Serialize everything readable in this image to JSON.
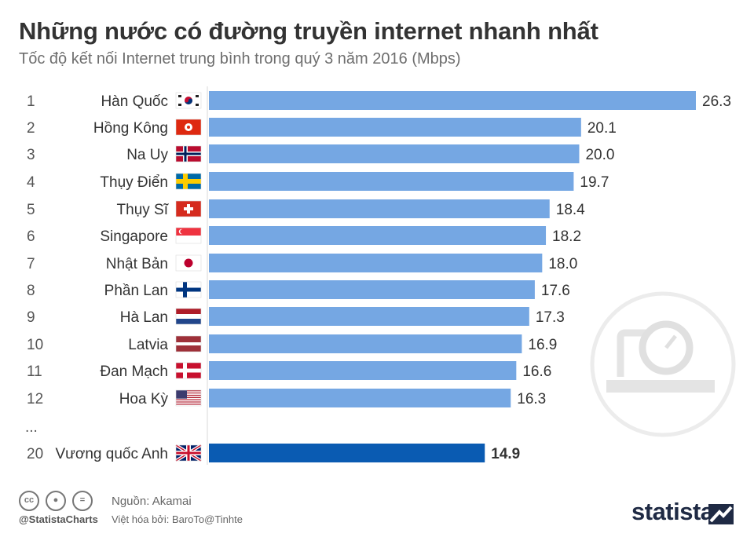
{
  "header": {
    "title": "Những nước có đường truyền internet nhanh nhất",
    "subtitle": "Tốc độ kết nối Internet trung bình trong quý 3 năm 2016 (Mbps)"
  },
  "footer": {
    "source": "Nguồn: Akamai",
    "translated_by": "Việt hóa bởi: BaroTo@Tinhte",
    "handle": "@StatistaCharts",
    "brand": "statista",
    "license_icons": [
      "cc-icon",
      "attribution-icon",
      "no-derivatives-icon"
    ]
  },
  "colors": {
    "bar": "#75a7e3",
    "highlight_bar": "#0a5bb2",
    "title": "#333333",
    "watermark": "#e6e6e6"
  },
  "chart_data": {
    "type": "bar",
    "orientation": "horizontal",
    "categories": [
      "Hàn Quốc",
      "Hồng Kông",
      "Na Uy",
      "Thụy Điển",
      "Thụy Sĩ",
      "Singapore",
      "Nhật Bản",
      "Phần Lan",
      "Hà Lan",
      "Latvia",
      "Đan Mạch",
      "Hoa Kỳ",
      "Vương quốc Anh"
    ],
    "ranks": [
      "1",
      "2",
      "3",
      "4",
      "5",
      "6",
      "7",
      "8",
      "9",
      "10",
      "11",
      "12",
      "20"
    ],
    "values": [
      26.3,
      20.1,
      20.0,
      19.7,
      18.4,
      18.2,
      18.0,
      17.6,
      17.3,
      16.9,
      16.6,
      16.3,
      14.9
    ],
    "value_labels": [
      "26.3",
      "20.1",
      "20.0",
      "19.7",
      "18.4",
      "18.2",
      "18.0",
      "17.6",
      "17.3",
      "16.9",
      "16.6",
      "16.3",
      "14.9"
    ],
    "flags": [
      "flag-south-korea-icon",
      "flag-hong-kong-icon",
      "flag-norway-icon",
      "flag-sweden-icon",
      "flag-switzerland-icon",
      "flag-singapore-icon",
      "flag-japan-icon",
      "flag-finland-icon",
      "flag-netherlands-icon",
      "flag-latvia-icon",
      "flag-denmark-icon",
      "flag-usa-icon",
      "flag-uk-icon"
    ],
    "highlighted_category": "Vương quốc Anh",
    "gap_marker": "...",
    "xlim": [
      0,
      26.3
    ]
  }
}
